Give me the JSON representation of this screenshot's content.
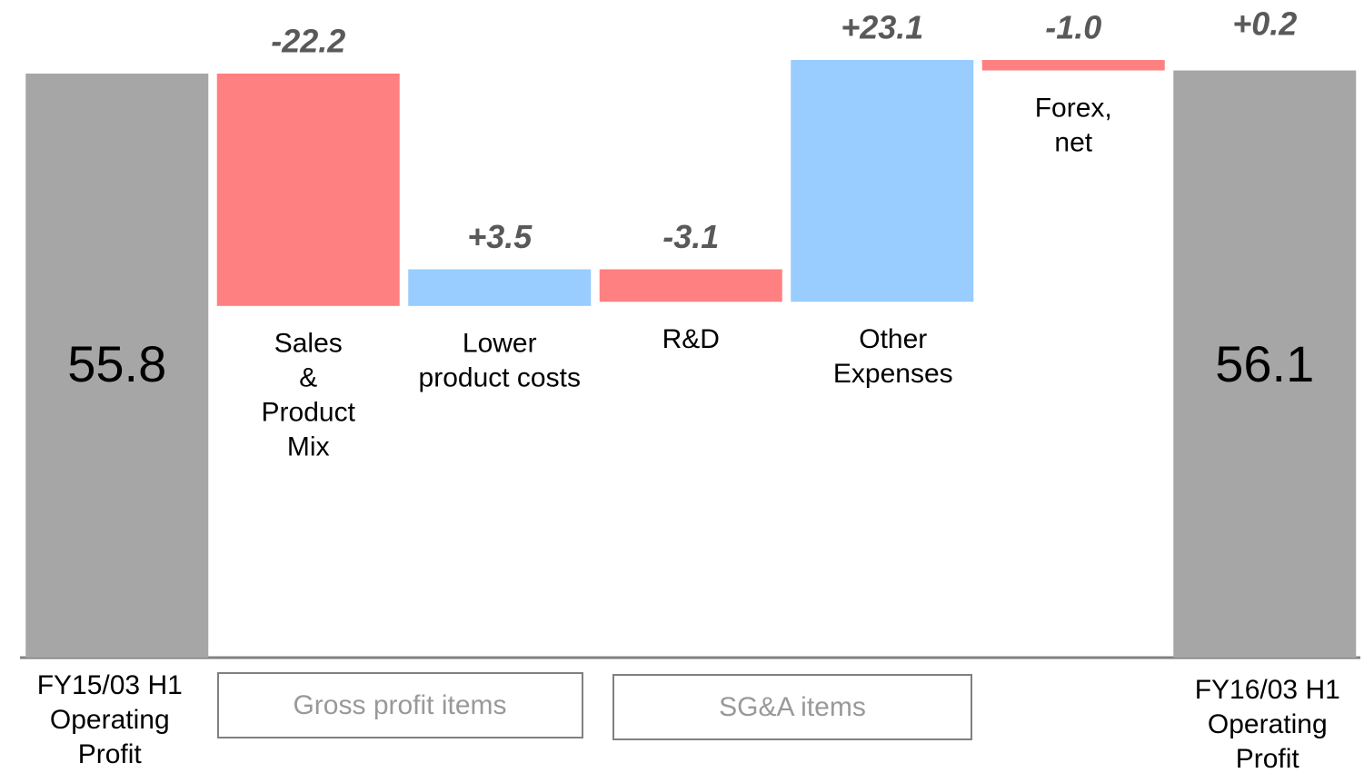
{
  "chart_data": {
    "type": "waterfall",
    "categories": [
      [
        "FY15/03 H1",
        "Operating",
        "Profit"
      ],
      [
        "Sales",
        "&",
        "Product",
        "Mix"
      ],
      [
        "Lower",
        "product costs"
      ],
      [
        "R&D"
      ],
      [
        "Other",
        "Expenses"
      ],
      [
        "Forex,",
        "net"
      ],
      [
        "FY16/03 H1",
        "Operating",
        "Profit"
      ]
    ],
    "measure": [
      "absolute",
      "relative",
      "relative",
      "relative",
      "relative",
      "relative",
      "absolute"
    ],
    "values": [
      55.8,
      -22.2,
      3.5,
      -3.1,
      23.1,
      -1.0,
      56.1
    ],
    "value_labels": [
      "55.8",
      "-22.2",
      "+3.5",
      "-3.1",
      "+23.1",
      "-1.0",
      "56.1"
    ],
    "annotation": "+0.2",
    "groups": [
      "Gross profit items",
      "SG&A items"
    ],
    "colors": {
      "total": "#a6a6a6",
      "increase": "#99ccff",
      "decrease": "#ff8080"
    },
    "ylim": [
      0,
      60
    ]
  }
}
